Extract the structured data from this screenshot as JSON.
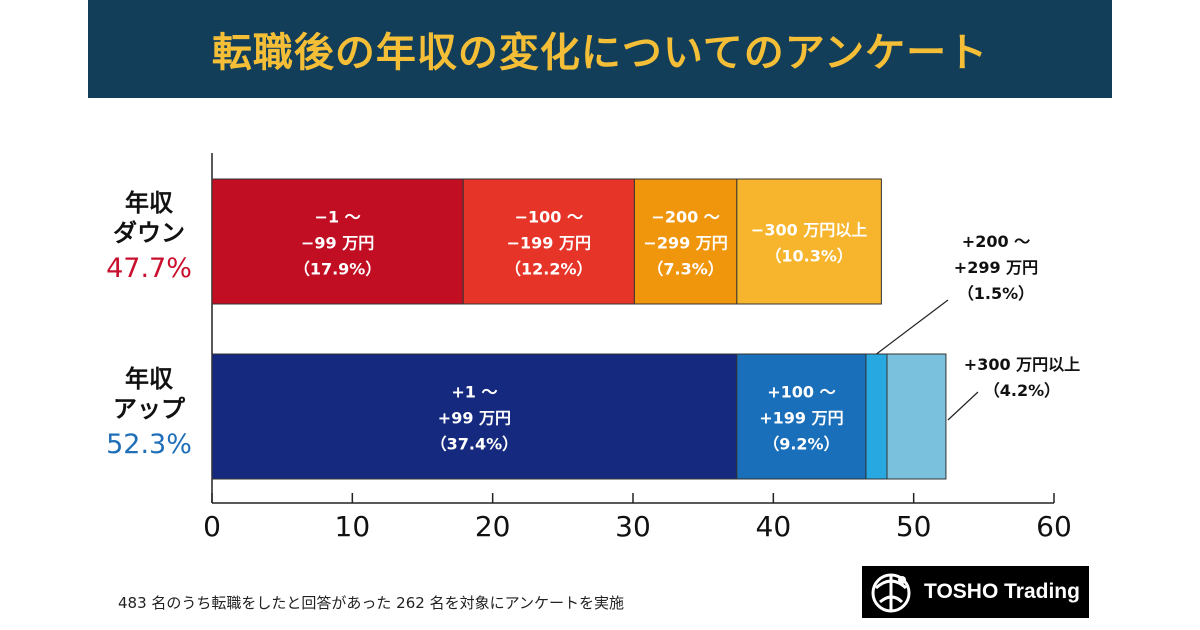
{
  "header": {
    "title": "転職後の年収の変化についてのアンケート"
  },
  "groups": {
    "down": {
      "line1": "年収",
      "line2": "ダウン",
      "percent": "47.7%",
      "color": "#c8102e"
    },
    "up": {
      "line1": "年収",
      "line2": "アップ",
      "percent": "52.3%",
      "color": "#1f6fb8"
    }
  },
  "chart_data": {
    "type": "bar",
    "orientation": "horizontal",
    "stacked": true,
    "xlim": [
      0,
      60
    ],
    "xticks": [
      0,
      10,
      20,
      30,
      40,
      50,
      60
    ],
    "xtick_labels": [
      "0",
      "10",
      "20",
      "30",
      "40",
      "50",
      "60"
    ],
    "categories": [
      "年収ダウン",
      "年収アップ"
    ],
    "grid": false,
    "segments": {
      "down": [
        {
          "value": 17.9,
          "color": "#c10e23",
          "text_color": "#ffffff",
          "lines": [
            "−1 ～",
            "−99 万円",
            "（17.9%）"
          ]
        },
        {
          "value": 12.2,
          "color": "#e63428",
          "text_color": "#ffffff",
          "lines": [
            "−100 ～",
            "−199 万円",
            "（12.2%）"
          ]
        },
        {
          "value": 7.3,
          "color": "#f0960c",
          "text_color": "#ffffff",
          "lines": [
            "−200 ～",
            "−299 万円",
            "（7.3%）"
          ]
        },
        {
          "value": 10.3,
          "color": "#f6b52c",
          "text_color": "#ffffff",
          "lines": [
            "−300 万円以上",
            "（10.3%）"
          ]
        }
      ],
      "up": [
        {
          "value": 37.4,
          "color": "#152a7e",
          "text_color": "#ffffff",
          "lines": [
            "+1 ～",
            "+99 万円",
            "（37.4%）"
          ]
        },
        {
          "value": 9.2,
          "color": "#1a6fba",
          "text_color": "#ffffff",
          "lines": [
            "+100 ～",
            "+199 万円",
            "（9.2%）"
          ]
        },
        {
          "value": 1.5,
          "color": "#28a8e0",
          "text_color": "#111111",
          "lines": [
            "+200 ～",
            "+299 万円",
            "（1.5%）"
          ],
          "callout": true
        },
        {
          "value": 4.2,
          "color": "#7ac1de",
          "text_color": "#111111",
          "lines": [
            "+300 万円以上",
            "（4.2%）"
          ],
          "callout": true
        }
      ]
    }
  },
  "footer": {
    "note": "483 名のうち転職をしたと回答があった 262 名を対象にアンケートを実施"
  },
  "logo": {
    "text": "TOSHO Trading",
    "mark_icon": "tosho-globe-icon"
  }
}
